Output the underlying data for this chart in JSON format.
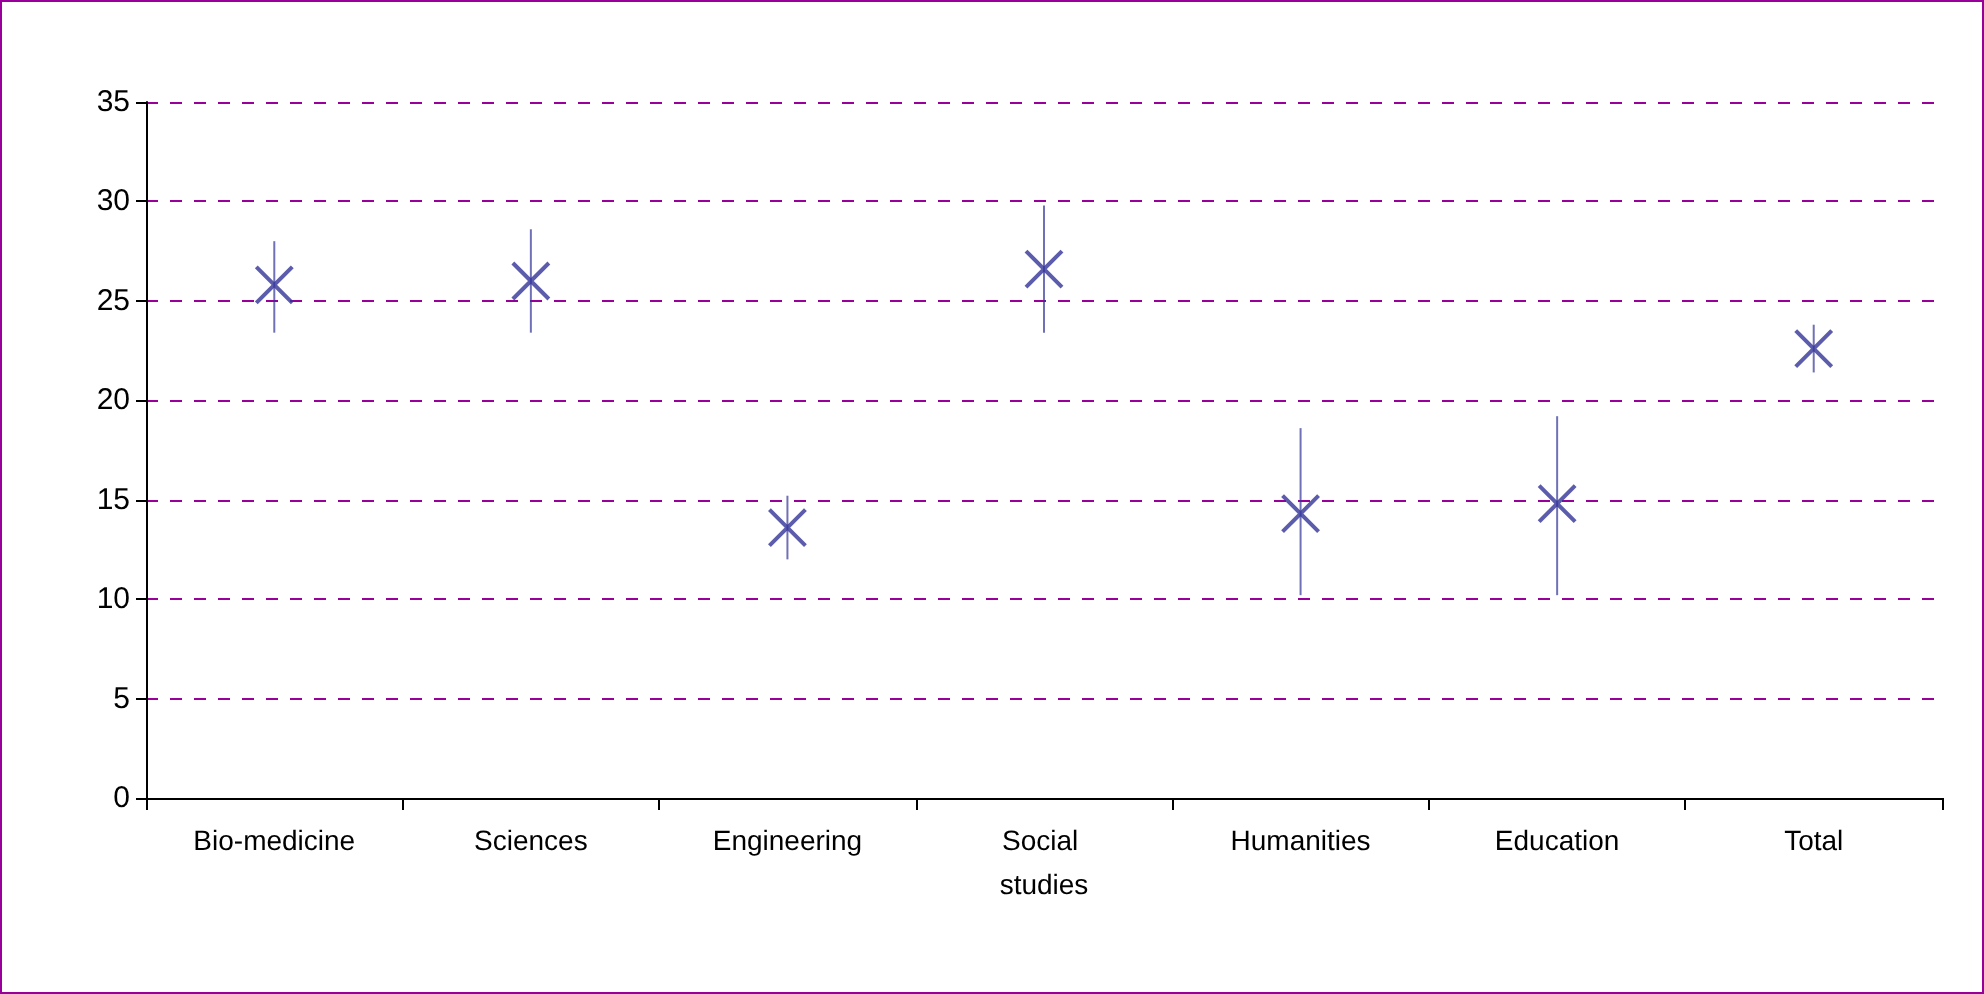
{
  "chart_data": {
    "type": "scatter",
    "categories": [
      "Bio-medicine",
      "Sciences",
      "Engineering",
      "Social studies",
      "Humanities",
      "Education",
      "Total"
    ],
    "values": [
      25.8,
      26.0,
      13.6,
      26.6,
      14.3,
      14.8,
      22.6
    ],
    "errors": [
      [
        23.4,
        28.0
      ],
      [
        23.4,
        28.6
      ],
      [
        12.0,
        15.2
      ],
      [
        23.4,
        29.8
      ],
      [
        10.2,
        18.6
      ],
      [
        10.2,
        19.2
      ],
      [
        21.4,
        23.8
      ]
    ],
    "color": "#333399",
    "marker": "cross",
    "ylim": [
      0,
      35
    ],
    "yticks": [
      0,
      5,
      10,
      15,
      20,
      25,
      30,
      35
    ],
    "grid": "y"
  }
}
